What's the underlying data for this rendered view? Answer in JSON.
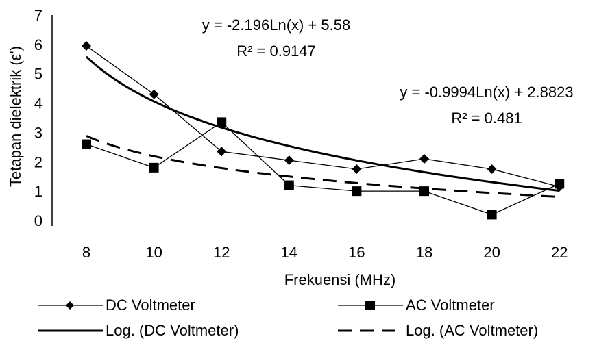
{
  "chart_data": {
    "type": "line",
    "title": "",
    "xlabel": "Frekuensi (MHz)",
    "ylabel": "Tetapan dielektrik (ε')",
    "x": [
      8,
      10,
      12,
      14,
      16,
      18,
      20,
      22
    ],
    "xticks": [
      "8",
      "10",
      "12",
      "14",
      "16",
      "18",
      "20",
      "22"
    ],
    "yticks": [
      "0",
      "1",
      "2",
      "3",
      "4",
      "5",
      "6",
      "7"
    ],
    "ylim": [
      0,
      7
    ],
    "grid": false,
    "legend_position": "bottom",
    "series": [
      {
        "name": "DC Voltmeter",
        "marker": "diamond",
        "values": [
          5.95,
          4.3,
          2.35,
          2.05,
          1.75,
          2.1,
          1.75,
          1.15
        ]
      },
      {
        "name": "AC Voltmeter",
        "marker": "square",
        "values": [
          2.6,
          1.8,
          3.35,
          1.2,
          1.0,
          1.0,
          0.2,
          1.25
        ]
      }
    ],
    "trendlines": [
      {
        "name": "Log. (DC Voltmeter)",
        "style": "solid",
        "a": -2.196,
        "b": 5.58,
        "equation": "y = -2.196Ln(x) + 5.58",
        "r2": "R² = 0.9147"
      },
      {
        "name": "Log. (AC Voltmeter)",
        "style": "dashed",
        "a": -0.9994,
        "b": 2.8823,
        "equation": "y = -0.9994Ln(x) + 2.8823",
        "r2": "R² = 0.481"
      }
    ]
  }
}
